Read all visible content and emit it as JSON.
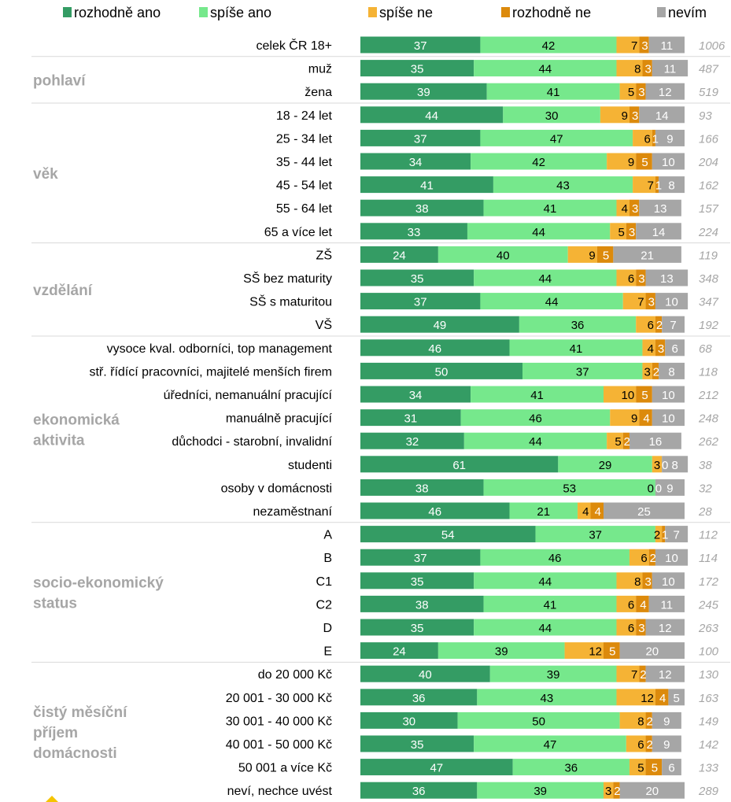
{
  "chart_data": {
    "type": "bar",
    "stacked": true,
    "orientation": "horizontal",
    "legend_position": "top",
    "series": [
      {
        "name": "rozhodně ano",
        "color": "#349c64"
      },
      {
        "name": "spíše ano",
        "color": "#76e88c"
      },
      {
        "name": "spíše ne",
        "color": "#f5b335"
      },
      {
        "name": "rozhodně ne",
        "color": "#dc8a0c"
      },
      {
        "name": "nevím",
        "color": "#a6a6a6"
      }
    ],
    "groups": [
      {
        "label": "",
        "lines": [],
        "start": 0,
        "end": 0
      },
      {
        "label": "pohlaví",
        "lines": [
          "pohlaví"
        ],
        "start": 1,
        "end": 2
      },
      {
        "label": "věk",
        "lines": [
          "věk"
        ],
        "start": 3,
        "end": 8
      },
      {
        "label": "vzdělání",
        "lines": [
          "vzdělání"
        ],
        "start": 9,
        "end": 12
      },
      {
        "label": "ekonomická aktivita",
        "lines": [
          "ekonomická",
          "aktivita"
        ],
        "start": 13,
        "end": 20
      },
      {
        "label": "socio-ekonomický status",
        "lines": [
          "socio-ekonomický",
          "status"
        ],
        "start": 21,
        "end": 26
      },
      {
        "label": "čistý měsíční příjem domácnosti",
        "lines": [
          "čistý měsíční",
          "příjem",
          "domácnosti"
        ],
        "start": 27,
        "end": 32
      }
    ],
    "rows": [
      {
        "label": "celek ČR 18+",
        "values": [
          37,
          42,
          7,
          3,
          11
        ],
        "n": "1006"
      },
      {
        "label": "muž",
        "values": [
          35,
          44,
          8,
          3,
          11
        ],
        "n": "487"
      },
      {
        "label": "žena",
        "values": [
          39,
          41,
          5,
          3,
          12
        ],
        "n": "519"
      },
      {
        "label": "18 - 24 let",
        "values": [
          44,
          30,
          9,
          3,
          14
        ],
        "n": "93"
      },
      {
        "label": "25 - 34 let",
        "values": [
          37,
          47,
          6,
          1,
          9
        ],
        "n": "166"
      },
      {
        "label": "35 - 44 let",
        "values": [
          34,
          42,
          9,
          5,
          10
        ],
        "n": "204"
      },
      {
        "label": "45 - 54 let",
        "values": [
          41,
          43,
          7,
          1,
          8
        ],
        "n": "162"
      },
      {
        "label": "55 - 64 let",
        "values": [
          38,
          41,
          4,
          3,
          13
        ],
        "n": "157"
      },
      {
        "label": "65 a více let",
        "values": [
          33,
          44,
          5,
          3,
          14
        ],
        "n": "224"
      },
      {
        "label": "ZŠ",
        "values": [
          24,
          40,
          9,
          5,
          21
        ],
        "n": "119"
      },
      {
        "label": "SŠ bez maturity",
        "values": [
          35,
          44,
          6,
          3,
          13
        ],
        "n": "348"
      },
      {
        "label": "SŠ s maturitou",
        "values": [
          37,
          44,
          7,
          3,
          10
        ],
        "n": "347"
      },
      {
        "label": "VŠ",
        "values": [
          49,
          36,
          6,
          2,
          7
        ],
        "n": "192"
      },
      {
        "label": "vysoce kval. odborníci, top management",
        "values": [
          46,
          41,
          4,
          3,
          6
        ],
        "n": "68"
      },
      {
        "label": "stř. řídící pracovníci, majitelé menších firem",
        "values": [
          50,
          37,
          3,
          2,
          8
        ],
        "n": "118"
      },
      {
        "label": "úředníci, nemanuální pracující",
        "values": [
          34,
          41,
          10,
          5,
          10
        ],
        "n": "212"
      },
      {
        "label": "manuálně pracující",
        "values": [
          31,
          46,
          9,
          4,
          10
        ],
        "n": "248"
      },
      {
        "label": "důchodci  - starobní, invalidní",
        "values": [
          32,
          44,
          5,
          2,
          16
        ],
        "n": "262"
      },
      {
        "label": "studenti",
        "values": [
          61,
          29,
          3,
          0,
          8
        ],
        "n": "38"
      },
      {
        "label": "osoby v domácnosti",
        "values": [
          38,
          53,
          0,
          0,
          9
        ],
        "n": "32"
      },
      {
        "label": "nezaměstnaní",
        "values": [
          46,
          21,
          4,
          4,
          25
        ],
        "n": "28"
      },
      {
        "label": "A",
        "values": [
          54,
          37,
          2,
          1,
          7
        ],
        "n": "112"
      },
      {
        "label": "B",
        "values": [
          37,
          46,
          6,
          2,
          10
        ],
        "n": "114"
      },
      {
        "label": "C1",
        "values": [
          35,
          44,
          8,
          3,
          10
        ],
        "n": "172"
      },
      {
        "label": "C2",
        "values": [
          38,
          41,
          6,
          4,
          11
        ],
        "n": "245"
      },
      {
        "label": "D",
        "values": [
          35,
          44,
          6,
          3,
          12
        ],
        "n": "263"
      },
      {
        "label": "E",
        "values": [
          24,
          39,
          12,
          5,
          20
        ],
        "n": "100"
      },
      {
        "label": "do 20 000 Kč",
        "values": [
          40,
          39,
          7,
          2,
          12
        ],
        "n": "130"
      },
      {
        "label": "20 001 - 30 000 Kč",
        "values": [
          36,
          43,
          12,
          4,
          5
        ],
        "n": "163"
      },
      {
        "label": "30 001 - 40 000 Kč",
        "values": [
          30,
          50,
          8,
          2,
          9
        ],
        "n": "149"
      },
      {
        "label": "40 001 - 50 000 Kč",
        "values": [
          35,
          47,
          6,
          2,
          9
        ],
        "n": "142"
      },
      {
        "label": "50 001 a více Kč",
        "values": [
          47,
          36,
          5,
          5,
          6
        ],
        "n": "133"
      },
      {
        "label": "neví, nechce uvést",
        "values": [
          36,
          39,
          3,
          2,
          20
        ],
        "n": "289"
      }
    ]
  }
}
